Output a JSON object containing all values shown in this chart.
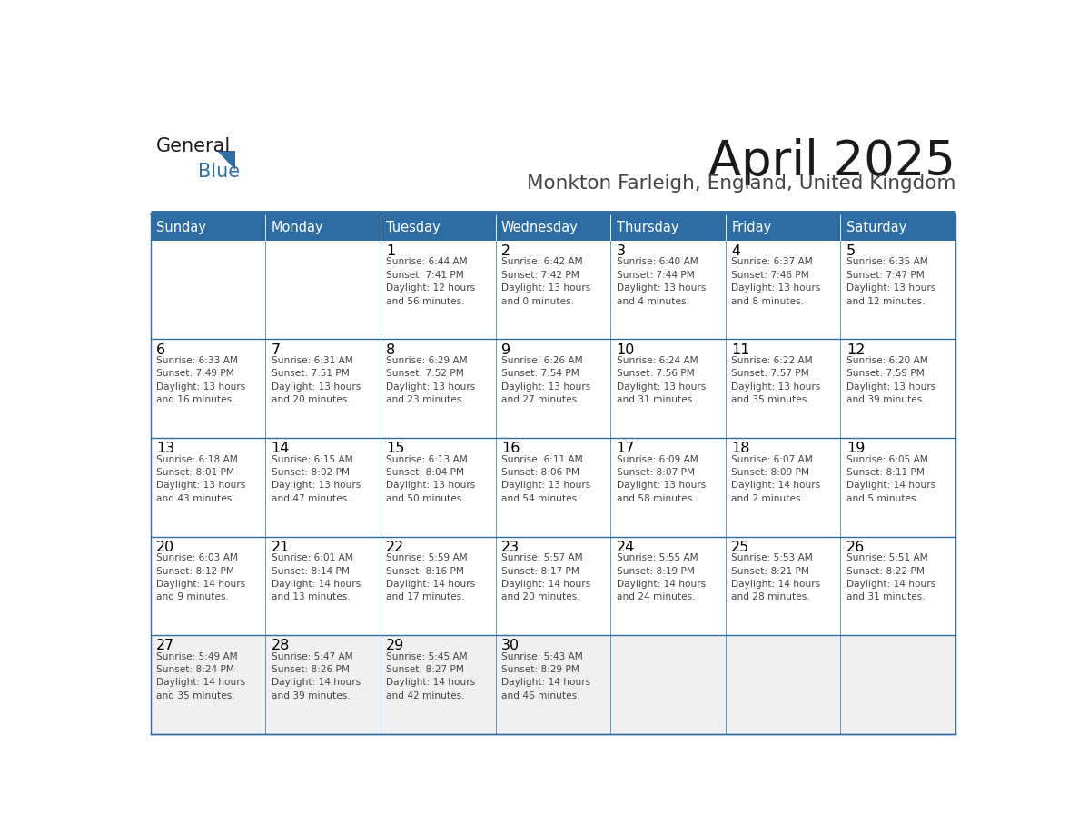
{
  "title": "April 2025",
  "subtitle": "Monkton Farleigh, England, United Kingdom",
  "header_color": "#2E6DA4",
  "header_text_color": "#FFFFFF",
  "cell_bg_white": "#FFFFFF",
  "cell_bg_gray": "#F0F0F0",
  "border_color": "#2E6DA4",
  "text_color": "#444444",
  "day_number_color": "#000000",
  "days_of_week": [
    "Sunday",
    "Monday",
    "Tuesday",
    "Wednesday",
    "Thursday",
    "Friday",
    "Saturday"
  ],
  "weeks": [
    [
      {
        "day": "",
        "info": ""
      },
      {
        "day": "",
        "info": ""
      },
      {
        "day": "1",
        "info": "Sunrise: 6:44 AM\nSunset: 7:41 PM\nDaylight: 12 hours\nand 56 minutes."
      },
      {
        "day": "2",
        "info": "Sunrise: 6:42 AM\nSunset: 7:42 PM\nDaylight: 13 hours\nand 0 minutes."
      },
      {
        "day": "3",
        "info": "Sunrise: 6:40 AM\nSunset: 7:44 PM\nDaylight: 13 hours\nand 4 minutes."
      },
      {
        "day": "4",
        "info": "Sunrise: 6:37 AM\nSunset: 7:46 PM\nDaylight: 13 hours\nand 8 minutes."
      },
      {
        "day": "5",
        "info": "Sunrise: 6:35 AM\nSunset: 7:47 PM\nDaylight: 13 hours\nand 12 minutes."
      }
    ],
    [
      {
        "day": "6",
        "info": "Sunrise: 6:33 AM\nSunset: 7:49 PM\nDaylight: 13 hours\nand 16 minutes."
      },
      {
        "day": "7",
        "info": "Sunrise: 6:31 AM\nSunset: 7:51 PM\nDaylight: 13 hours\nand 20 minutes."
      },
      {
        "day": "8",
        "info": "Sunrise: 6:29 AM\nSunset: 7:52 PM\nDaylight: 13 hours\nand 23 minutes."
      },
      {
        "day": "9",
        "info": "Sunrise: 6:26 AM\nSunset: 7:54 PM\nDaylight: 13 hours\nand 27 minutes."
      },
      {
        "day": "10",
        "info": "Sunrise: 6:24 AM\nSunset: 7:56 PM\nDaylight: 13 hours\nand 31 minutes."
      },
      {
        "day": "11",
        "info": "Sunrise: 6:22 AM\nSunset: 7:57 PM\nDaylight: 13 hours\nand 35 minutes."
      },
      {
        "day": "12",
        "info": "Sunrise: 6:20 AM\nSunset: 7:59 PM\nDaylight: 13 hours\nand 39 minutes."
      }
    ],
    [
      {
        "day": "13",
        "info": "Sunrise: 6:18 AM\nSunset: 8:01 PM\nDaylight: 13 hours\nand 43 minutes."
      },
      {
        "day": "14",
        "info": "Sunrise: 6:15 AM\nSunset: 8:02 PM\nDaylight: 13 hours\nand 47 minutes."
      },
      {
        "day": "15",
        "info": "Sunrise: 6:13 AM\nSunset: 8:04 PM\nDaylight: 13 hours\nand 50 minutes."
      },
      {
        "day": "16",
        "info": "Sunrise: 6:11 AM\nSunset: 8:06 PM\nDaylight: 13 hours\nand 54 minutes."
      },
      {
        "day": "17",
        "info": "Sunrise: 6:09 AM\nSunset: 8:07 PM\nDaylight: 13 hours\nand 58 minutes."
      },
      {
        "day": "18",
        "info": "Sunrise: 6:07 AM\nSunset: 8:09 PM\nDaylight: 14 hours\nand 2 minutes."
      },
      {
        "day": "19",
        "info": "Sunrise: 6:05 AM\nSunset: 8:11 PM\nDaylight: 14 hours\nand 5 minutes."
      }
    ],
    [
      {
        "day": "20",
        "info": "Sunrise: 6:03 AM\nSunset: 8:12 PM\nDaylight: 14 hours\nand 9 minutes."
      },
      {
        "day": "21",
        "info": "Sunrise: 6:01 AM\nSunset: 8:14 PM\nDaylight: 14 hours\nand 13 minutes."
      },
      {
        "day": "22",
        "info": "Sunrise: 5:59 AM\nSunset: 8:16 PM\nDaylight: 14 hours\nand 17 minutes."
      },
      {
        "day": "23",
        "info": "Sunrise: 5:57 AM\nSunset: 8:17 PM\nDaylight: 14 hours\nand 20 minutes."
      },
      {
        "day": "24",
        "info": "Sunrise: 5:55 AM\nSunset: 8:19 PM\nDaylight: 14 hours\nand 24 minutes."
      },
      {
        "day": "25",
        "info": "Sunrise: 5:53 AM\nSunset: 8:21 PM\nDaylight: 14 hours\nand 28 minutes."
      },
      {
        "day": "26",
        "info": "Sunrise: 5:51 AM\nSunset: 8:22 PM\nDaylight: 14 hours\nand 31 minutes."
      }
    ],
    [
      {
        "day": "27",
        "info": "Sunrise: 5:49 AM\nSunset: 8:24 PM\nDaylight: 14 hours\nand 35 minutes."
      },
      {
        "day": "28",
        "info": "Sunrise: 5:47 AM\nSunset: 8:26 PM\nDaylight: 14 hours\nand 39 minutes."
      },
      {
        "day": "29",
        "info": "Sunrise: 5:45 AM\nSunset: 8:27 PM\nDaylight: 14 hours\nand 42 minutes."
      },
      {
        "day": "30",
        "info": "Sunrise: 5:43 AM\nSunset: 8:29 PM\nDaylight: 14 hours\nand 46 minutes."
      },
      {
        "day": "",
        "info": ""
      },
      {
        "day": "",
        "info": ""
      },
      {
        "day": "",
        "info": ""
      }
    ]
  ],
  "logo_text_general": "General",
  "logo_text_blue": "Blue",
  "logo_color_general": "#1a1a1a",
  "logo_color_blue": "#2E6DA4",
  "logo_triangle_color": "#2E6DA4",
  "fig_width": 11.88,
  "fig_height": 9.18,
  "dpi": 100
}
